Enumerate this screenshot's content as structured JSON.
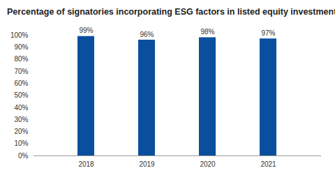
{
  "chart_data": {
    "type": "bar",
    "title": "Percentage of signatories incorporating ESG factors in listed equity investments",
    "categories": [
      "2018",
      "2019",
      "2020",
      "2021"
    ],
    "values": [
      99,
      96,
      98,
      97
    ],
    "value_labels": [
      "99%",
      "96%",
      "98%",
      "97%"
    ],
    "data_labels": true,
    "color": "#0a4f9e",
    "ylim": [
      0,
      100
    ],
    "yticks": [
      {
        "value": 0,
        "label": "0%"
      },
      {
        "value": 10,
        "label": "10%"
      },
      {
        "value": 20,
        "label": "20%"
      },
      {
        "value": 30,
        "label": "30%"
      },
      {
        "value": 40,
        "label": "40%"
      },
      {
        "value": 50,
        "label": "50%"
      },
      {
        "value": 60,
        "label": "60%"
      },
      {
        "value": 70,
        "label": "70%"
      },
      {
        "value": 80,
        "label": "80%"
      },
      {
        "value": 90,
        "label": "90%"
      },
      {
        "value": 100,
        "label": "100%"
      }
    ],
    "grid": false
  }
}
